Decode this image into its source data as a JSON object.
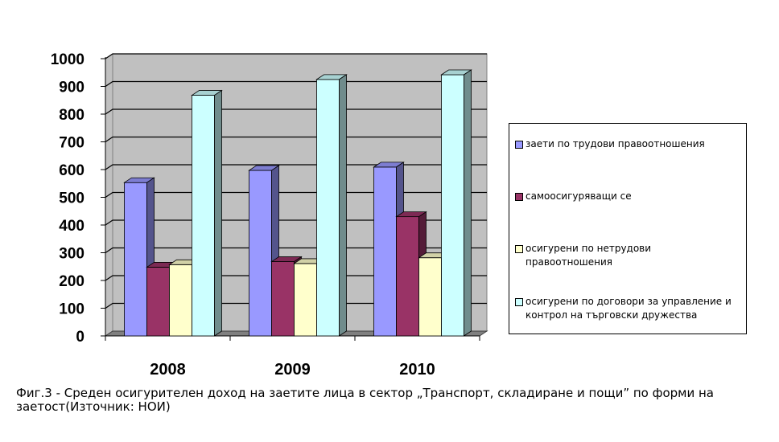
{
  "chart_data": {
    "type": "bar",
    "categories": [
      "2008",
      "2009",
      "2010"
    ],
    "series": [
      {
        "name": "заети по трудови правоотношения",
        "values": [
          553,
          597,
          609
        ],
        "color": "#9999ff"
      },
      {
        "name": "самоосигуряващи се",
        "values": [
          248,
          268,
          430
        ],
        "color": "#993366"
      },
      {
        "name": "осигурени по нетрудови правоотношения",
        "values": [
          257,
          261,
          282
        ],
        "color": "#ffffcc"
      },
      {
        "name": "осигурени по договори за управление и контрол на търговски дружества",
        "values": [
          868,
          925,
          942
        ],
        "color": "#ccffff"
      }
    ],
    "ylim": [
      0,
      1000
    ],
    "yticks": [
      0,
      100,
      200,
      300,
      400,
      500,
      600,
      700,
      800,
      900,
      1000
    ],
    "grid": true,
    "legend_position": "right",
    "style": "3d-clustered-column"
  },
  "caption": "Фиг.3 - Среден осигурителен доход на заетите лица в сектор „Транспорт, складиране и пощи” по форми на заетост(Източник: НОИ)"
}
